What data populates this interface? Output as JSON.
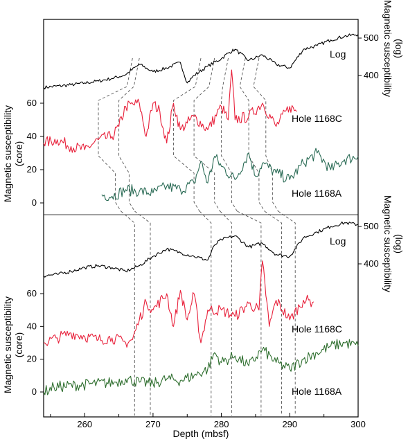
{
  "chart_data": {
    "type": "line",
    "xlabel": "Depth (mbsf)",
    "xlim": [
      254,
      300
    ],
    "xticks": [
      "260",
      "270",
      "280",
      "290",
      "300"
    ],
    "panels": [
      {
        "name": "upper",
        "log_axis": {
          "label_line1": "Magnetic susceptibility",
          "label_line2": "(log)",
          "ticks": [
            "400",
            "500"
          ]
        },
        "core_axis": {
          "label_line1": "Magnetic susceptibility",
          "label_line2": "(core)",
          "ticks": [
            "0",
            "20",
            "40",
            "60"
          ],
          "ylim": [
            -5,
            80
          ]
        },
        "series": [
          {
            "name": "Log",
            "color": "#000000",
            "x": [
              254,
              258,
              260,
              262,
              264,
              266,
              268,
              270,
              272,
              274,
              275,
              276,
              278,
              280,
              281,
              282,
              284,
              286,
              288,
              290,
              292,
              294,
              296,
              298,
              300
            ],
            "y": [
              368,
              375,
              380,
              385,
              392,
              402,
              430,
              410,
              420,
              435,
              380,
              400,
              425,
              445,
              460,
              470,
              440,
              455,
              430,
              420,
              470,
              480,
              495,
              505,
              510
            ]
          },
          {
            "name": "Hole 1168C",
            "color": "#e8213b",
            "x": [
              254,
              256,
              258,
              260,
              262,
              264,
              265,
              266,
              268,
              269,
              270,
              271,
              272,
              273,
              274,
              275,
              276,
              278,
              280,
              281,
              281.5,
              282,
              284,
              286,
              288,
              290,
              291
            ],
            "y": [
              36,
              38,
              34,
              32,
              38,
              40,
              46,
              58,
              60,
              40,
              60,
              55,
              36,
              60,
              44,
              48,
              52,
              44,
              58,
              50,
              80,
              50,
              52,
              60,
              46,
              58,
              55
            ]
          },
          {
            "name": "Hole 1168A",
            "color": "#2a6b55",
            "x": [
              262.5,
              264,
              266,
              268,
              270,
              272,
              274,
              276,
              277,
              278,
              279,
              280,
              282,
              284,
              285,
              286,
              288,
              290,
              292,
              294,
              296,
              298,
              300
            ],
            "y": [
              5,
              4,
              8,
              7,
              6,
              10,
              8,
              12,
              25,
              12,
              28,
              22,
              14,
              30,
              16,
              24,
              18,
              14,
              24,
              30,
              20,
              26,
              28
            ]
          }
        ],
        "label_annotations": [
          "Log",
          "Hole 1168C",
          "Hole 1168A"
        ]
      },
      {
        "name": "lower",
        "log_axis": {
          "label_line1": "Magnetic susceptibility",
          "label_line2": "(log)",
          "ticks": [
            "400",
            "500"
          ]
        },
        "core_axis": {
          "label_line1": "Magnetic susceptibility",
          "label_line2": "(core)",
          "ticks": [
            "0",
            "20",
            "40",
            "60"
          ],
          "ylim": [
            -5,
            80
          ]
        },
        "series": [
          {
            "name": "Log",
            "color": "#000000",
            "x": [
              254,
              256,
              258,
              260,
              262,
              264,
              266,
              268,
              270,
              272,
              274,
              276,
              278,
              279,
              280,
              282,
              284,
              286,
              288,
              290,
              292,
              294,
              296,
              298,
              300
            ],
            "y": [
              368,
              372,
              380,
              390,
              395,
              390,
              380,
              395,
              420,
              440,
              430,
              420,
              410,
              450,
              465,
              475,
              445,
              455,
              425,
              420,
              470,
              485,
              500,
              510,
              505
            ]
          },
          {
            "name": "Hole 1168C",
            "color": "#e8213b",
            "x": [
              254,
              256,
              258,
              260,
              262,
              264,
              266,
              267,
              268,
              269,
              270,
              272,
              273,
              274,
              275,
              276,
              277,
              278,
              280,
              282,
              284,
              285.5,
              286,
              287,
              288,
              290,
              292,
              293.5
            ],
            "y": [
              30,
              33,
              36,
              34,
              32,
              33,
              30,
              32,
              44,
              55,
              50,
              60,
              40,
              62,
              44,
              60,
              30,
              50,
              50,
              46,
              54,
              50,
              80,
              40,
              56,
              44,
              56,
              55
            ]
          },
          {
            "name": "Hole 1168A",
            "color": "#2e6e2e",
            "x": [
              254,
              255.5,
              264.5,
              266,
              268,
              270,
              272,
              274,
              276,
              278,
              279,
              280,
              282,
              284,
              286,
              288,
              290,
              292,
              294,
              296,
              298,
              300
            ],
            "y": [
              0,
              3,
              6,
              8,
              6,
              5,
              8,
              7,
              10,
              14,
              24,
              18,
              22,
              16,
              26,
              18,
              14,
              20,
              24,
              28,
              30,
              28
            ]
          }
        ],
        "label_annotations": [
          "Log",
          "Hole 1168C",
          "Hole 1168A"
        ]
      }
    ],
    "correlation_lines_upper": [
      {
        "x_log": 267,
        "x_c": 262,
        "x_a": 264.5
      },
      {
        "x_log": 268,
        "x_c": 265,
        "x_a": 266.5
      },
      {
        "x_log": 277,
        "x_c": 273,
        "x_a": 276
      },
      {
        "x_log": 279,
        "x_c": 276,
        "x_a": 279
      },
      {
        "x_log": 281,
        "x_c": 280,
        "x_a": 281.5
      },
      {
        "x_log": 283.5,
        "x_c": 284,
        "x_a": 285.5
      },
      {
        "x_log": 285.5,
        "x_c": 286.5,
        "x_a": 287.5
      }
    ],
    "correlation_lines_lower": [
      267.3,
      269.6,
      278.5,
      281.5,
      285.8,
      288.8,
      290.8
    ]
  }
}
